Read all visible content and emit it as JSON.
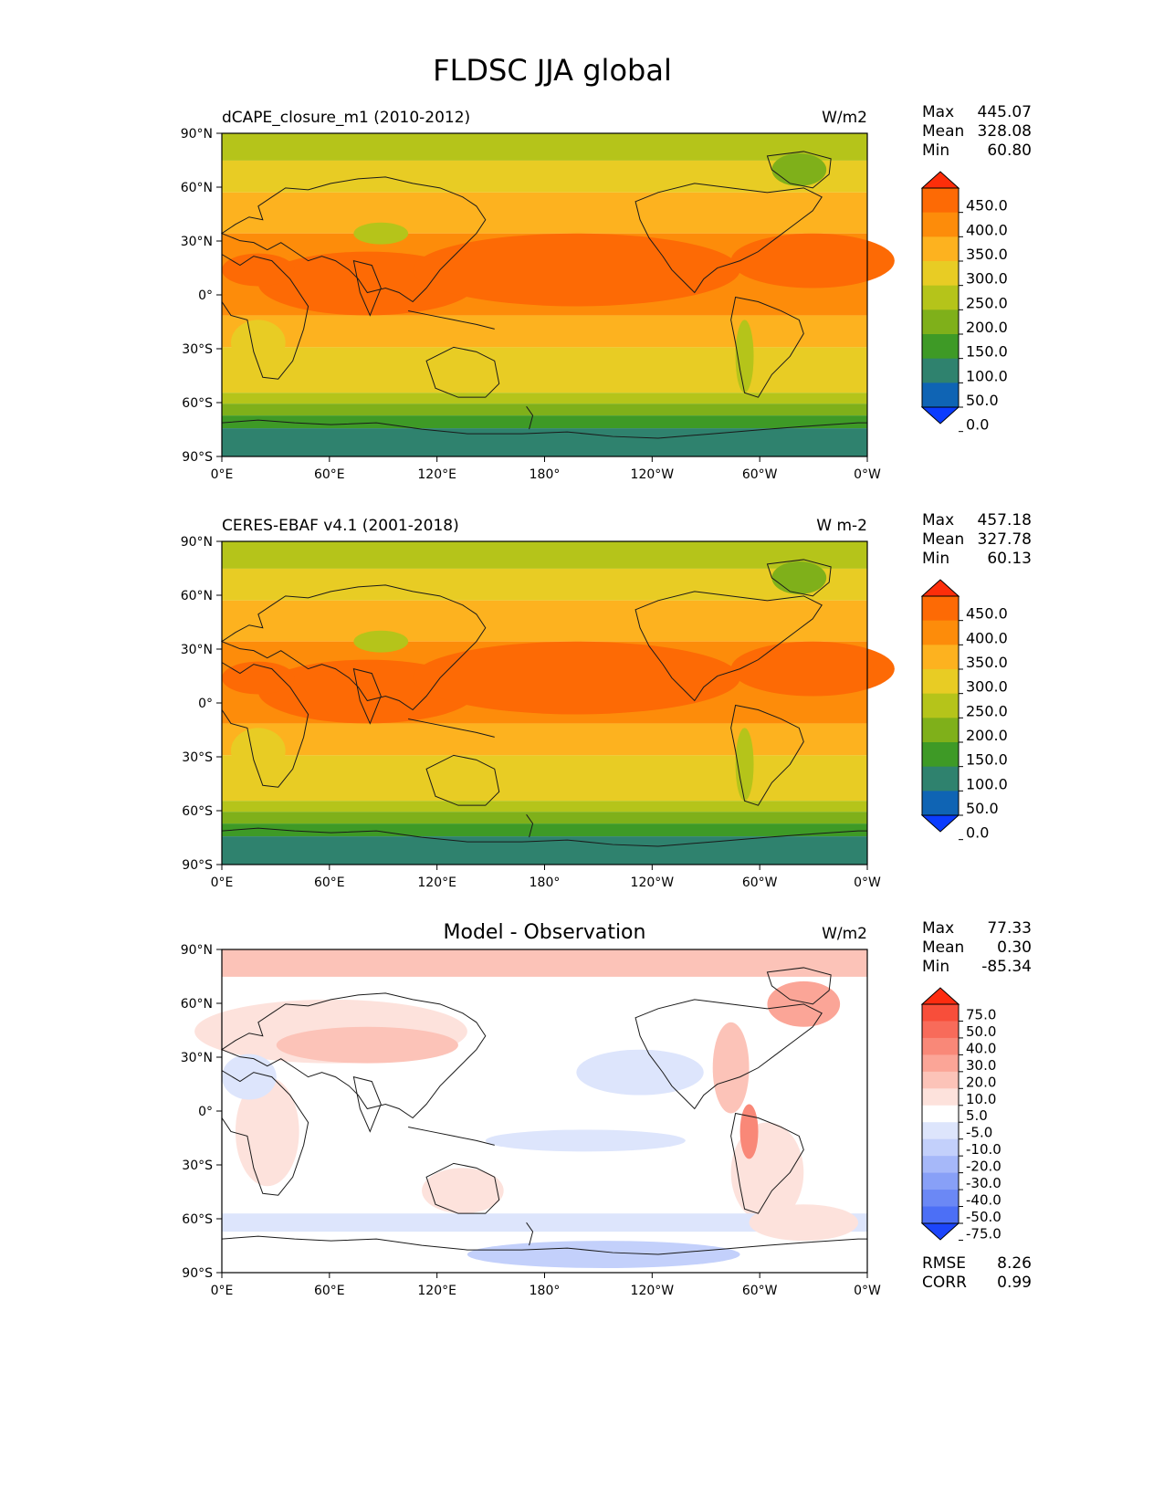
{
  "figure": {
    "title": "FLDSC JJA global"
  },
  "axes": {
    "lat_labels": [
      "90°N",
      "60°N",
      "30°N",
      "0°",
      "30°S",
      "60°S",
      "90°S"
    ],
    "lon_labels": [
      "0°E",
      "60°E",
      "120°E",
      "180°",
      "120°W",
      "60°W",
      "0°W"
    ]
  },
  "panels": [
    {
      "left_title": "dCAPE_closure_m1 (2010-2012)",
      "center_title": "",
      "units": "W/m2",
      "stats": {
        "max_label": "Max",
        "max": "445.07",
        "mean_label": "Mean",
        "mean": "328.08",
        "min_label": "Min",
        "min": "60.80"
      },
      "colorbar": {
        "levels": [
          "450.0",
          "400.0",
          "350.0",
          "300.0",
          "250.0",
          "200.0",
          "150.0",
          "100.0",
          "50.0",
          "0.0"
        ],
        "colors": [
          "#fd2e0a",
          "#fd6a05",
          "#fd8c0a",
          "#fdb21f",
          "#e8cc24",
          "#b5c41a",
          "#7fb01a",
          "#3e9a26",
          "#2f826e",
          "#0f64b4",
          "#0b3cff"
        ]
      }
    },
    {
      "left_title": "CERES-EBAF v4.1 (2001-2018)",
      "center_title": "",
      "units": "W m-2",
      "stats": {
        "max_label": "Max",
        "max": "457.18",
        "mean_label": "Mean",
        "mean": "327.78",
        "min_label": "Min",
        "min": "60.13"
      },
      "colorbar": {
        "levels": [
          "450.0",
          "400.0",
          "350.0",
          "300.0",
          "250.0",
          "200.0",
          "150.0",
          "100.0",
          "50.0",
          "0.0"
        ],
        "colors": [
          "#fd2e0a",
          "#fd6a05",
          "#fd8c0a",
          "#fdb21f",
          "#e8cc24",
          "#b5c41a",
          "#7fb01a",
          "#3e9a26",
          "#2f826e",
          "#0f64b4",
          "#0b3cff"
        ]
      }
    },
    {
      "left_title": "",
      "center_title": "Model - Observation",
      "units": "W/m2",
      "stats": {
        "max_label": "Max",
        "max": "77.33",
        "mean_label": "Mean",
        "mean": "0.30",
        "min_label": "Min",
        "min": "-85.34"
      },
      "colorbar": {
        "levels": [
          "75.0",
          "50.0",
          "40.0",
          "30.0",
          "20.0",
          "10.0",
          "5.0",
          "-5.0",
          "-10.0",
          "-20.0",
          "-30.0",
          "-40.0",
          "-50.0",
          "-75.0"
        ],
        "colors": [
          "#fd2c10",
          "#f84e3a",
          "#f86b5a",
          "#f98878",
          "#fba597",
          "#fcc3b8",
          "#fde2dc",
          "#ffffff",
          "#dde5fc",
          "#c3d0fb",
          "#a6b8f9",
          "#88a0f7",
          "#6b88f5",
          "#4c6ff6",
          "#1c45fb"
        ]
      },
      "error_stats": {
        "rmse_label": "RMSE",
        "rmse": "8.26",
        "corr_label": "CORR",
        "corr": "0.99"
      }
    }
  ]
}
